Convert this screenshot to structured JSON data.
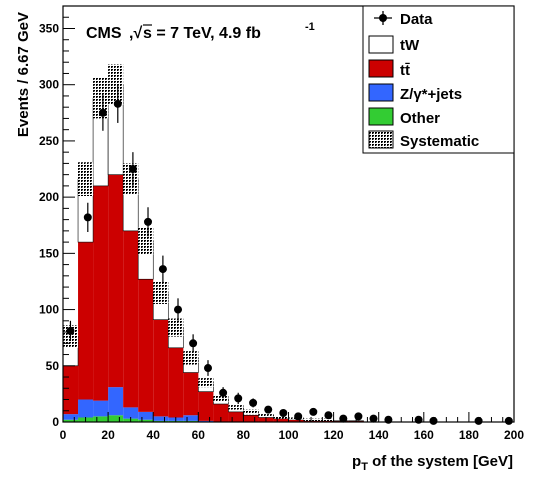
{
  "chart_data": {
    "type": "bar",
    "stacked": true,
    "title": "",
    "annotation": {
      "experiment": "CMS",
      "sqrt_s_label": "s = 7 TeV, 4.9 fb",
      "lumi_exponent": "-1"
    },
    "xlabel_main": "p",
    "xlabel_sub": "T",
    "xlabel_rest": " of the system [GeV]",
    "ylabel": "Events / 6.67 GeV",
    "xlim": [
      0,
      200
    ],
    "ylim": [
      0,
      370
    ],
    "xticks": [
      "0",
      "20",
      "40",
      "60",
      "80",
      "100",
      "120",
      "140",
      "160",
      "180",
      "200"
    ],
    "yticks": [
      "0",
      "50",
      "100",
      "150",
      "200",
      "250",
      "300",
      "350"
    ],
    "bin_width": 6.67,
    "bin_edges_start": 0,
    "series": [
      {
        "name": "Other",
        "color": "#33cc33",
        "values": [
          2,
          4,
          5,
          6,
          3,
          2,
          1,
          1,
          1,
          0,
          0,
          0,
          0,
          0,
          0,
          0,
          0,
          0,
          0,
          0,
          0,
          0,
          0,
          0,
          0,
          0,
          0,
          0,
          0,
          0
        ]
      },
      {
        "name": "Z/γ*+jets",
        "color": "#3366ff",
        "values": [
          5,
          16,
          14,
          25,
          10,
          7,
          4,
          3,
          5,
          1,
          0,
          0,
          0,
          0,
          0,
          0,
          0,
          0,
          0,
          0,
          0,
          0,
          0,
          0,
          0,
          0,
          0,
          0,
          0,
          0
        ]
      },
      {
        "name": "tt̄",
        "color": "#cc0000",
        "values": [
          43,
          140,
          191,
          189,
          157,
          118,
          86,
          62,
          38,
          26,
          16,
          9,
          6,
          4,
          3,
          2,
          1,
          1,
          1,
          1,
          0,
          0,
          0,
          0,
          0,
          0,
          0,
          0,
          0,
          0
        ]
      },
      {
        "name": "tW",
        "color": "#ffffff",
        "values": [
          26,
          56,
          78,
          80,
          46,
          34,
          24,
          18,
          13,
          8,
          5,
          4,
          3,
          2,
          1,
          1,
          1,
          1,
          0,
          0,
          0,
          0,
          0,
          0,
          0,
          0,
          0,
          0,
          0,
          0
        ]
      }
    ],
    "systematic": {
      "name": "Systematic",
      "errors": [
        10,
        15,
        18,
        18,
        14,
        12,
        10,
        8,
        6,
        4,
        3,
        2,
        2,
        1,
        1,
        1,
        1,
        1,
        0,
        0,
        0,
        0,
        0,
        0,
        0,
        0,
        0,
        0,
        0,
        0
      ]
    },
    "data": {
      "name": "Data",
      "x": [
        3.3,
        11.0,
        17.7,
        24.3,
        31.0,
        37.7,
        44.3,
        51.0,
        57.7,
        64.3,
        71.0,
        77.7,
        84.3,
        91.0,
        97.7,
        104.3,
        111.0,
        117.7,
        124.3,
        131.0,
        137.7,
        144.3,
        157.7,
        164.3,
        184.3,
        197.7
      ],
      "y": [
        81,
        182,
        275,
        283,
        225,
        178,
        136,
        100,
        70,
        48,
        26,
        21,
        17,
        11,
        8,
        5,
        9,
        6,
        3,
        5,
        3,
        2,
        2,
        1,
        1,
        1
      ],
      "err": [
        9,
        13,
        16,
        17,
        15,
        13,
        12,
        10,
        8,
        7,
        5,
        5,
        4,
        3,
        3,
        2,
        3,
        2,
        2,
        2,
        2,
        1,
        1,
        1,
        1,
        1
      ]
    },
    "legend": {
      "position": "top-right",
      "entries": [
        {
          "label": "Data",
          "kind": "marker"
        },
        {
          "label": "tW",
          "kind": "fill",
          "color": "#ffffff"
        },
        {
          "label": "tt̄",
          "kind": "fill",
          "color": "#cc0000"
        },
        {
          "label": "Z/γ*+jets",
          "kind": "fill",
          "color": "#3366ff"
        },
        {
          "label": "Other",
          "kind": "fill",
          "color": "#33cc33"
        },
        {
          "label": "Systematic",
          "kind": "hatch"
        }
      ]
    }
  }
}
